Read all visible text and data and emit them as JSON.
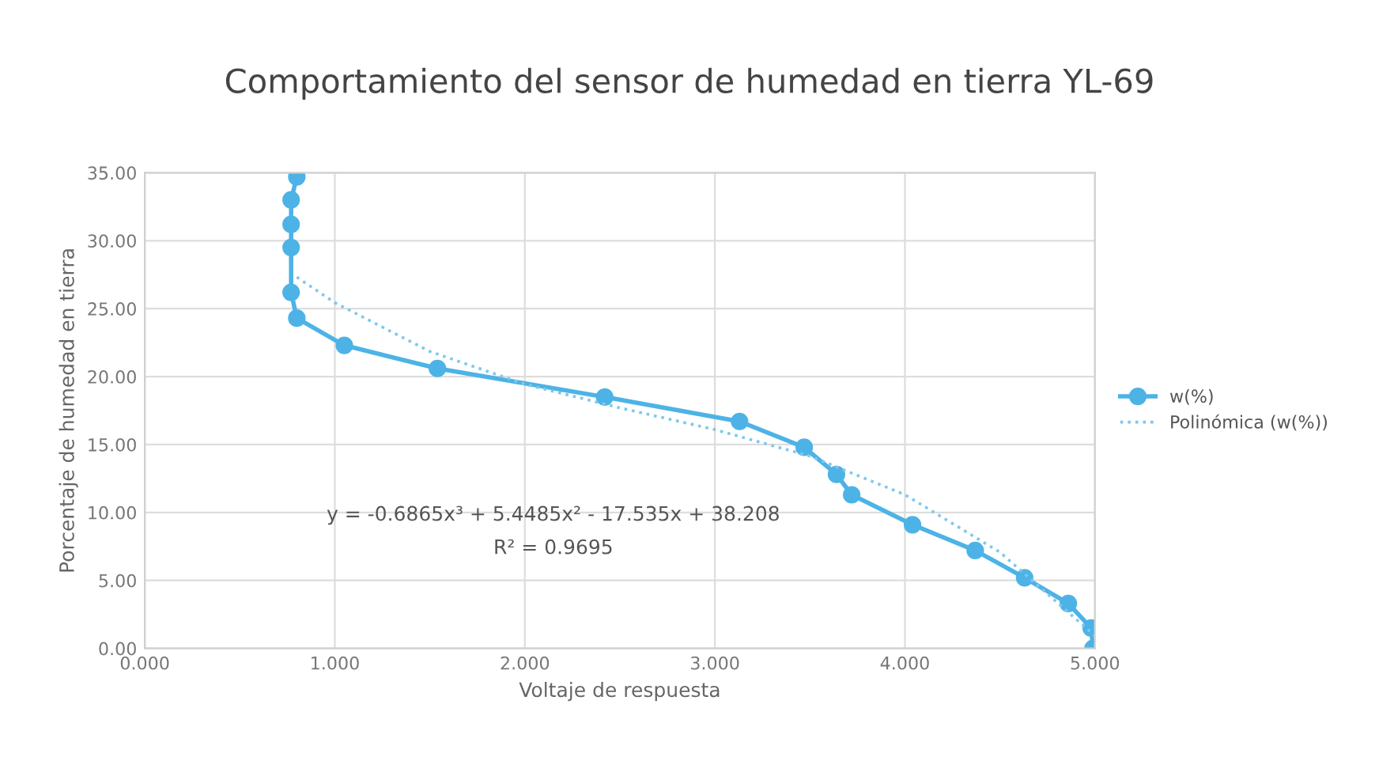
{
  "chart_data": {
    "type": "line",
    "title": "Comportamiento del sensor de humedad en tierra YL-69",
    "xlabel": "Voltaje de respuesta",
    "ylabel": "Porcentaje de humedad en tierra",
    "series": [
      {
        "name": "w(%)",
        "color": "#4db3e6",
        "marker": "circle",
        "line_style": "solid",
        "x": [
          0.8,
          0.77,
          0.77,
          0.77,
          0.77,
          0.8,
          1.05,
          1.54,
          2.42,
          3.13,
          3.47,
          3.64,
          3.72,
          4.04,
          4.37,
          4.63,
          4.86,
          4.98,
          4.99
        ],
        "values": [
          34.7,
          33.0,
          31.2,
          29.5,
          26.2,
          24.3,
          22.3,
          20.6,
          18.5,
          16.7,
          14.8,
          12.8,
          11.3,
          9.1,
          7.2,
          5.2,
          3.3,
          1.5,
          0
        ]
      },
      {
        "name": "Polinómica (w(%))",
        "color": "#7ec8ec",
        "marker": "none",
        "line_style": "dotted",
        "x": [
          0.8,
          1,
          1.5,
          2,
          2.5,
          3,
          3.5,
          4,
          4.5,
          5
        ],
        "values": [
          27.32,
          25.44,
          21.85,
          19.44,
          17.7,
          16.1,
          14.15,
          11.31,
          7.08,
          0.93
        ]
      }
    ],
    "annotations": [
      "y = -0.6865x³ + 5.4485x² - 17.535x + 38.208",
      "R² = 0.9695"
    ],
    "xlim": [
      0,
      5
    ],
    "xticks": [
      {
        "value": 0,
        "label": "0.000"
      },
      {
        "value": 1,
        "label": "1.000"
      },
      {
        "value": 2,
        "label": "2.000"
      },
      {
        "value": 3,
        "label": "3.000"
      },
      {
        "value": 4,
        "label": "4.000"
      },
      {
        "value": 5,
        "label": "5.000"
      }
    ],
    "ylim": [
      0,
      35
    ],
    "yticks": [
      {
        "value": 0,
        "label": "0.00"
      },
      {
        "value": 5,
        "label": "5.00"
      },
      {
        "value": 10,
        "label": "10.00"
      },
      {
        "value": 15,
        "label": "15.00"
      },
      {
        "value": 20,
        "label": "20.00"
      },
      {
        "value": 25,
        "label": "25.00"
      },
      {
        "value": 30,
        "label": "30.00"
      },
      {
        "value": 35,
        "label": "35.00"
      }
    ],
    "grid": true,
    "legend": "right"
  }
}
